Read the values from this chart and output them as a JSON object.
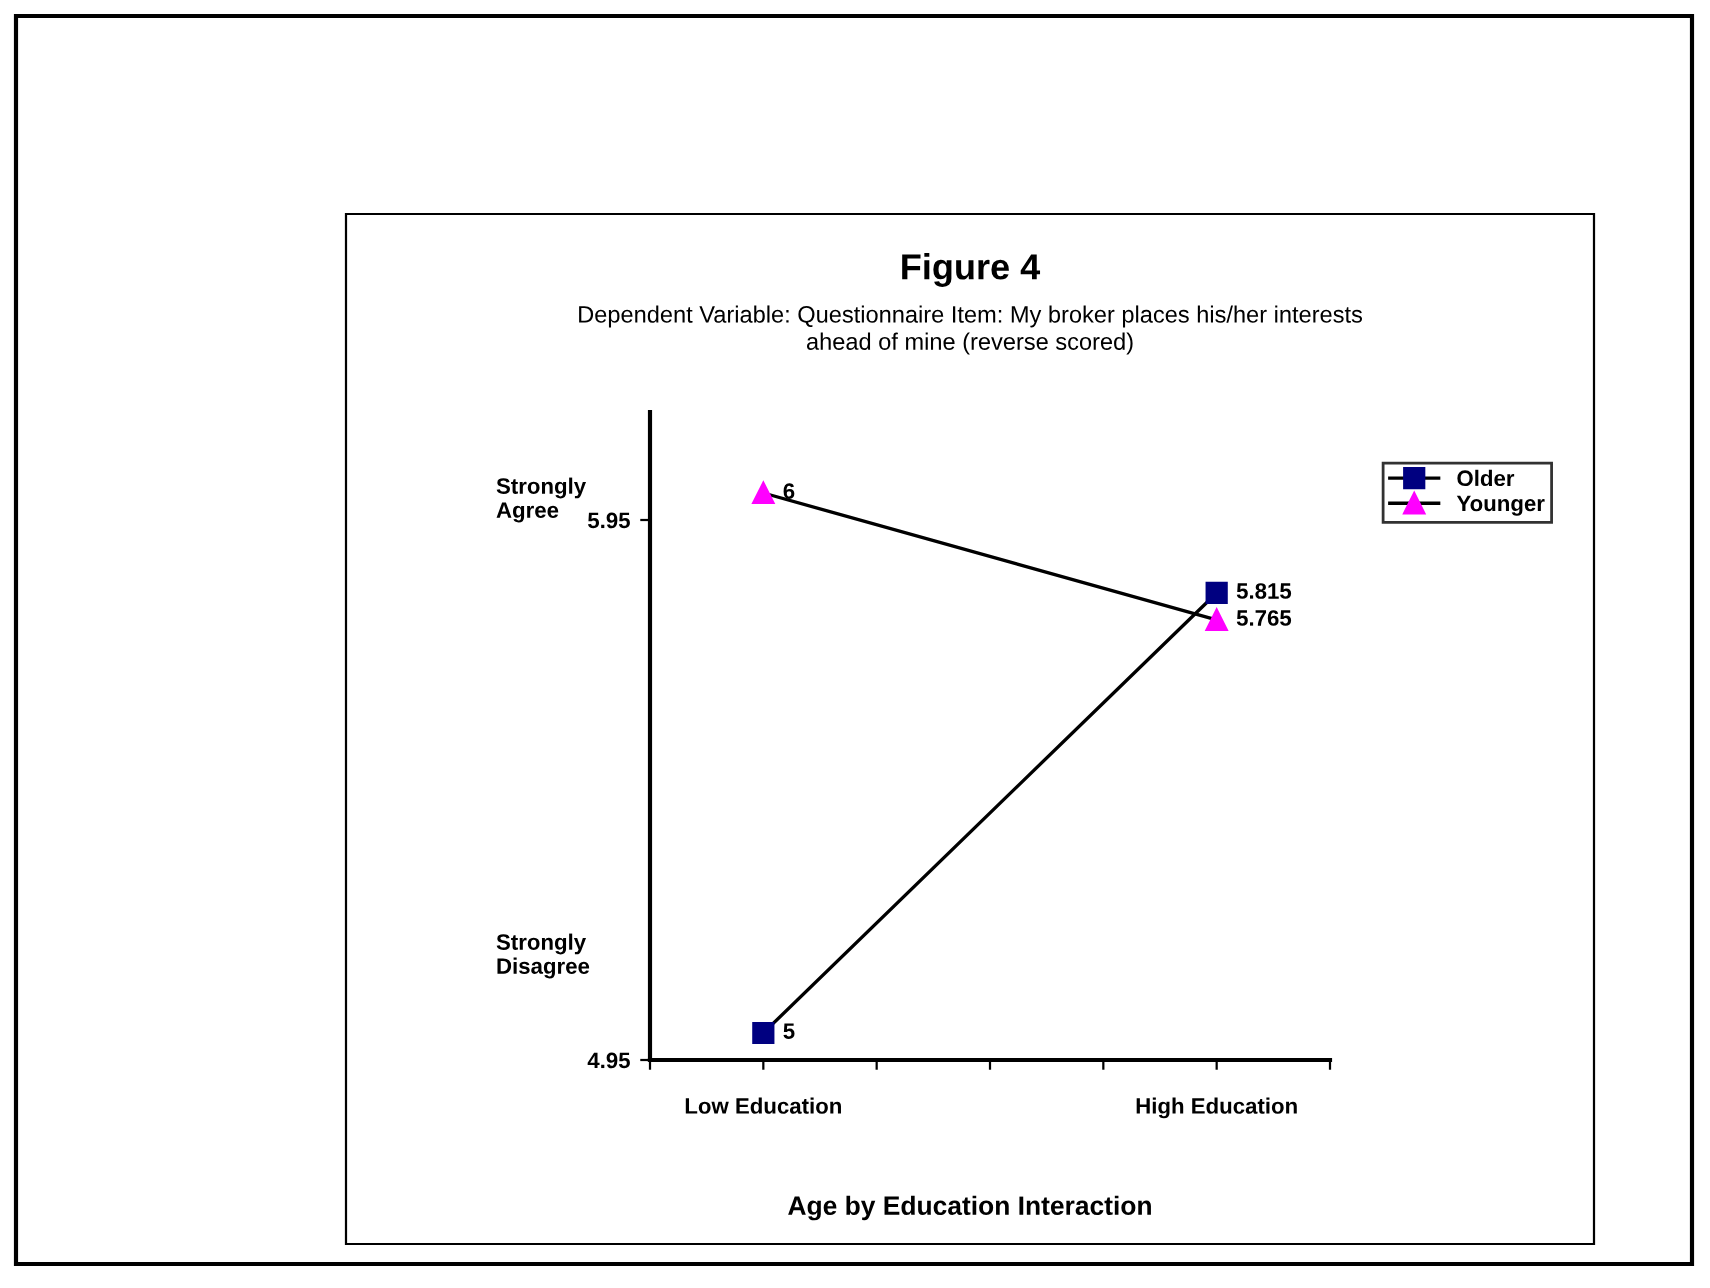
{
  "chart_data": {
    "type": "line",
    "title": "Figure 4",
    "subtitle": "Dependent Variable: Questionnaire Item: My broker places his/her interests\nahead of mine (reverse scored)",
    "xlabel": "Age by Education Interaction",
    "annotations": [
      "Strongly\nAgree",
      "Strongly\nDisagree"
    ],
    "categories": [
      "Low Education",
      "High Education"
    ],
    "ylim": [
      4.95,
      6.15
    ],
    "yticks": [
      4.95,
      5.95
    ],
    "series": [
      {
        "name": "Older",
        "color": "#000080",
        "values": [
          5,
          5.815
        ],
        "marker": "square"
      },
      {
        "name": "Younger",
        "color": "#ff00ff",
        "values": [
          6,
          5.765
        ],
        "marker": "triangle"
      }
    ],
    "data_labels": true,
    "grid": false,
    "legend": "top right",
    "line_style": "solid"
  }
}
